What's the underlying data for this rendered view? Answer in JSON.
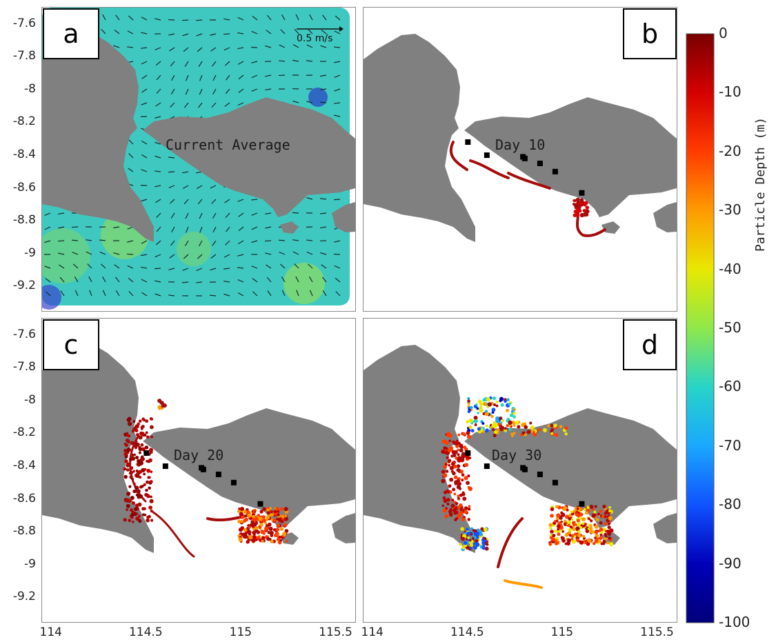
{
  "panels": [
    {
      "label": "a",
      "annotation": "Current Average"
    },
    {
      "label": "b",
      "annotation": "Day 10"
    },
    {
      "label": "c",
      "annotation": "Day 20"
    },
    {
      "label": "d",
      "annotation": "Day 30"
    }
  ],
  "scale_arrow": {
    "label": "0.5 m/s"
  },
  "axes": {
    "yticks": [
      "-7.6",
      "-7.8",
      "-8",
      "-8.2",
      "-8.4",
      "-8.6",
      "-8.8",
      "-9",
      "-9.2"
    ],
    "xticks": [
      "114",
      "114.5",
      "115",
      "115.5"
    ]
  },
  "colorbar": {
    "label": "Particle Depth (m)",
    "ticks": [
      "0",
      "-10",
      "-20",
      "-30",
      "-40",
      "-50",
      "-60",
      "-70",
      "-80",
      "-90",
      "-100"
    ],
    "colors": [
      "#7a0000",
      "#d40000",
      "#ff3c00",
      "#ff9a00",
      "#e8e800",
      "#8fe84a",
      "#27d4c8",
      "#1aa8ff",
      "#1052ff",
      "#0000b8",
      "#00007a"
    ]
  },
  "colors": {
    "land": "#808080",
    "sea_current": "#3fc8c0",
    "particles": "#a50c0c",
    "stations": "#000000"
  },
  "chart_data": {
    "type": "map",
    "xlim": [
      113.95,
      115.6
    ],
    "ylim": [
      -9.35,
      -7.5
    ],
    "stations": [
      [
        114.5,
        -8.32
      ],
      [
        114.6,
        -8.4
      ],
      [
        114.79,
        -8.41
      ],
      [
        114.8,
        -8.42
      ],
      [
        114.88,
        -8.45
      ],
      [
        114.96,
        -8.5
      ],
      [
        115.1,
        -8.63
      ]
    ]
  }
}
